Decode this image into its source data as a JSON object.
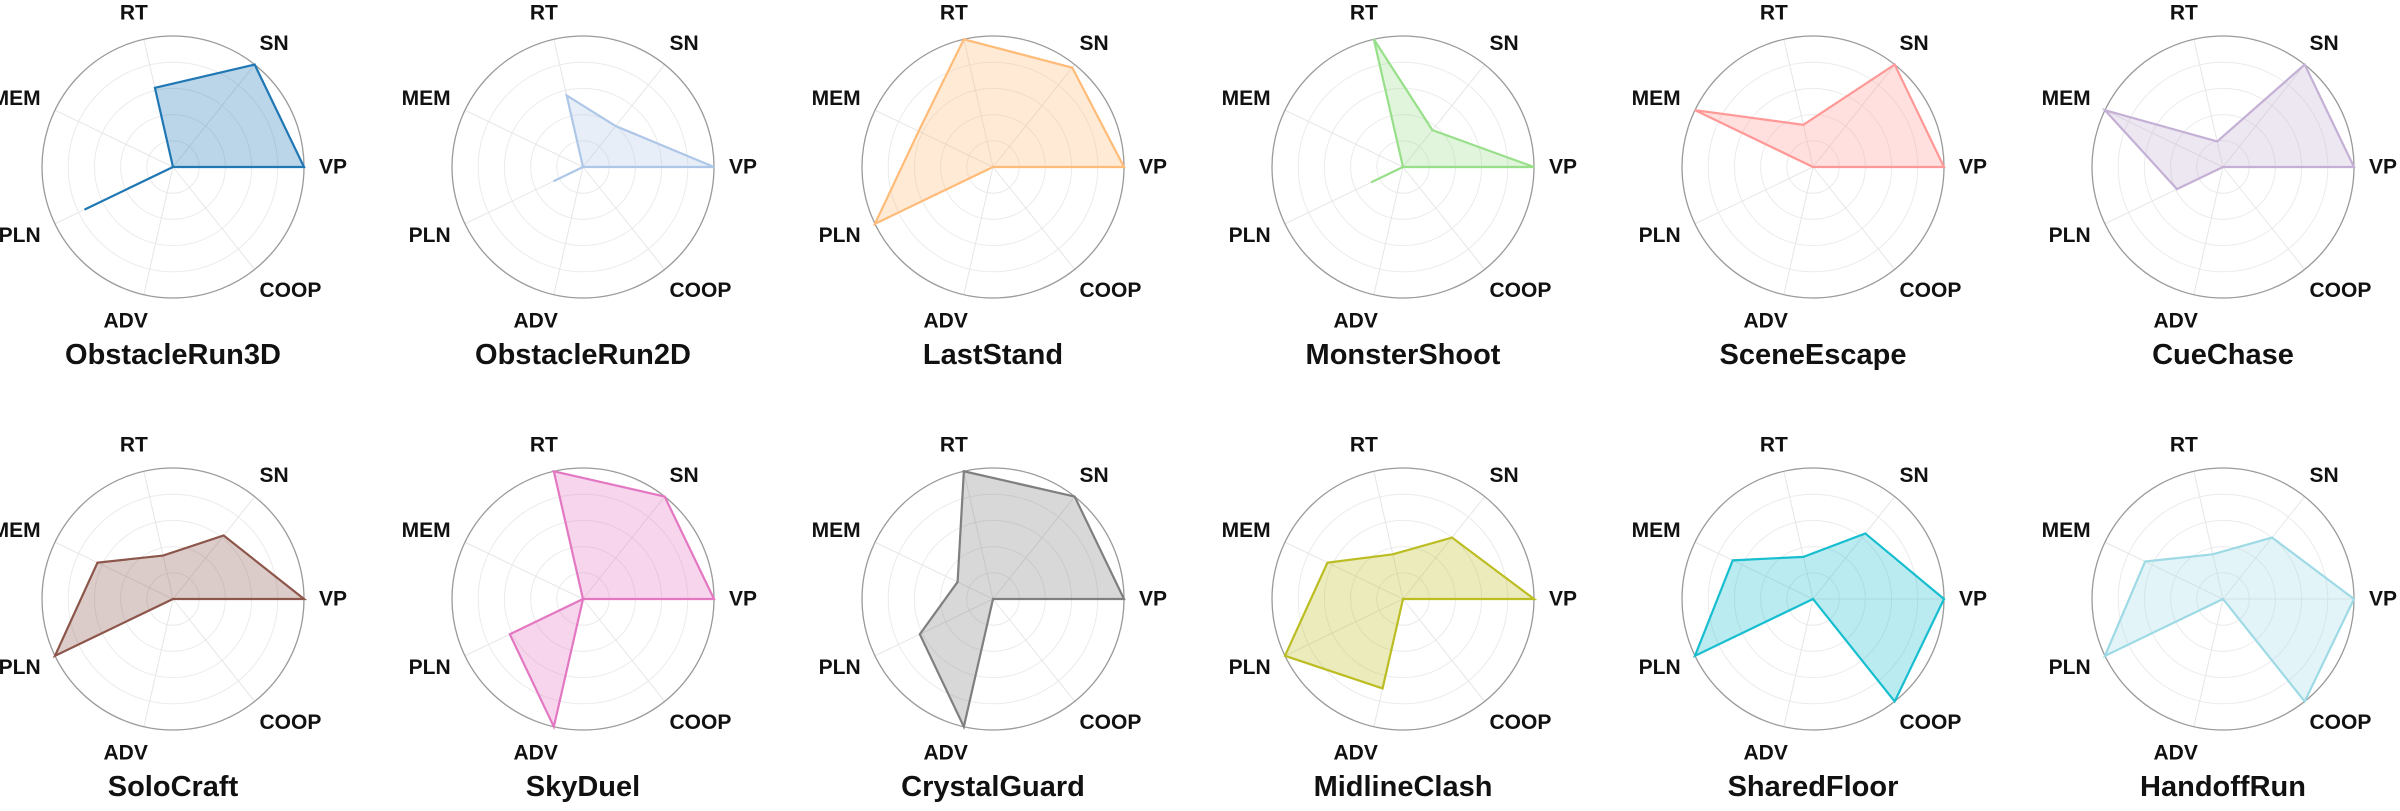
{
  "chart_data": [
    {
      "type": "radar",
      "title": "ObstacleRun3D",
      "axes": [
        "VP",
        "SN",
        "RT",
        "MEM",
        "PLN",
        "ADV",
        "COOP"
      ],
      "ylim": [
        0,
        1
      ],
      "series": [
        {
          "values": [
            1.0,
            1.0,
            0.62,
            0.0,
            0.75,
            0.0,
            0.0
          ]
        }
      ],
      "color": "#1f77b4"
    },
    {
      "type": "radar",
      "title": "ObstacleRun2D",
      "axes": [
        "VP",
        "SN",
        "RT",
        "MEM",
        "PLN",
        "ADV",
        "COOP"
      ],
      "ylim": [
        0,
        1
      ],
      "series": [
        {
          "values": [
            1.0,
            0.4,
            0.56,
            0.0,
            0.25,
            0.0,
            0.0
          ]
        }
      ],
      "color": "#aec7e8"
    },
    {
      "type": "radar",
      "title": "LastStand",
      "axes": [
        "VP",
        "SN",
        "RT",
        "MEM",
        "PLN",
        "ADV",
        "COOP"
      ],
      "ylim": [
        0,
        1
      ],
      "series": [
        {
          "values": [
            1.0,
            0.97,
            1.0,
            0.63,
            1.0,
            0.0,
            0.0
          ]
        }
      ],
      "color": "#ffbb78"
    },
    {
      "type": "radar",
      "title": "MonsterShoot",
      "axes": [
        "VP",
        "SN",
        "RT",
        "MEM",
        "PLN",
        "ADV",
        "COOP"
      ],
      "ylim": [
        0,
        1
      ],
      "series": [
        {
          "values": [
            1.0,
            0.36,
            1.0,
            0.0,
            0.27,
            0.0,
            0.0
          ]
        }
      ],
      "color": "#98df8a"
    },
    {
      "type": "radar",
      "title": "SceneEscape",
      "axes": [
        "VP",
        "SN",
        "RT",
        "MEM",
        "PLN",
        "ADV",
        "COOP"
      ],
      "ylim": [
        0,
        1
      ],
      "series": [
        {
          "values": [
            1.0,
            1.0,
            0.33,
            1.0,
            0.0,
            0.0,
            0.0
          ]
        }
      ],
      "color": "#ff9896"
    },
    {
      "type": "radar",
      "title": "CueChase",
      "axes": [
        "VP",
        "SN",
        "RT",
        "MEM",
        "PLN",
        "ADV",
        "COOP"
      ],
      "ylim": [
        0,
        1
      ],
      "series": [
        {
          "values": [
            1.0,
            1.0,
            0.2,
            1.0,
            0.39,
            0.0,
            0.0
          ]
        }
      ],
      "color": "#c5b0d5"
    },
    {
      "type": "radar",
      "title": "SoloCraft",
      "axes": [
        "VP",
        "SN",
        "RT",
        "MEM",
        "PLN",
        "ADV",
        "COOP"
      ],
      "ylim": [
        0,
        1
      ],
      "series": [
        {
          "values": [
            1.0,
            0.62,
            0.34,
            0.64,
            1.0,
            0.0,
            0.0
          ]
        }
      ],
      "color": "#8c564b"
    },
    {
      "type": "radar",
      "title": "SkyDuel",
      "axes": [
        "VP",
        "SN",
        "RT",
        "MEM",
        "PLN",
        "ADV",
        "COOP"
      ],
      "ylim": [
        0,
        1
      ],
      "series": [
        {
          "values": [
            1.0,
            1.0,
            1.0,
            0.0,
            0.62,
            1.0,
            0.0
          ]
        }
      ],
      "color": "#e377c2"
    },
    {
      "type": "radar",
      "title": "CrystalGuard",
      "axes": [
        "VP",
        "SN",
        "RT",
        "MEM",
        "PLN",
        "ADV",
        "COOP"
      ],
      "ylim": [
        0,
        1
      ],
      "series": [
        {
          "values": [
            1.0,
            1.0,
            1.0,
            0.3,
            0.62,
            1.0,
            0.0
          ]
        }
      ],
      "color": "#7f7f7f"
    },
    {
      "type": "radar",
      "title": "MidlineClash",
      "axes": [
        "VP",
        "SN",
        "RT",
        "MEM",
        "PLN",
        "ADV",
        "COOP"
      ],
      "ylim": [
        0,
        1
      ],
      "series": [
        {
          "values": [
            1.0,
            0.6,
            0.35,
            0.64,
            1.0,
            0.7,
            0.0
          ]
        }
      ],
      "color": "#bcbd22"
    },
    {
      "type": "radar",
      "title": "SharedFloor",
      "axes": [
        "VP",
        "SN",
        "RT",
        "MEM",
        "PLN",
        "ADV",
        "COOP"
      ],
      "ylim": [
        0,
        1
      ],
      "series": [
        {
          "values": [
            1.0,
            0.64,
            0.33,
            0.68,
            1.0,
            0.0,
            1.0
          ]
        }
      ],
      "color": "#17becf"
    },
    {
      "type": "radar",
      "title": "HandoffRun",
      "axes": [
        "VP",
        "SN",
        "RT",
        "MEM",
        "PLN",
        "ADV",
        "COOP"
      ],
      "ylim": [
        0,
        1
      ],
      "series": [
        {
          "values": [
            1.0,
            0.6,
            0.35,
            0.66,
            1.0,
            0.0,
            1.0
          ]
        }
      ],
      "color": "#9edae5"
    }
  ]
}
